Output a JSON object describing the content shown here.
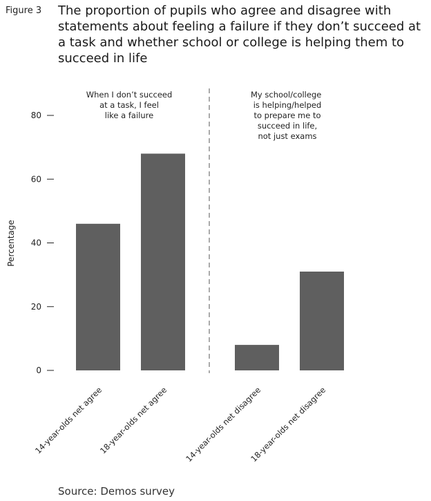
{
  "figure_label": "Figure 3",
  "title": "The proportion of pupils who agree and disagree with statements about feeling a failure if they don’t succeed at a task and whether school or college is helping them to succeed in life",
  "source": "Source: Demos survey",
  "colors": {
    "bar": "#5f5f5f",
    "axis": "#222222",
    "divider": "#555555"
  },
  "chart_data": {
    "type": "bar",
    "ylabel": "Percentage",
    "xlabel": "",
    "ylim": [
      0,
      80
    ],
    "yticks": [
      0,
      20,
      40,
      60,
      80
    ],
    "grid": false,
    "categories": [
      "14-year-olds net agree",
      "18-year-olds net agree",
      "14-year-olds net disagree",
      "18-year-olds net disagree"
    ],
    "values": [
      46,
      68,
      8,
      31
    ],
    "panels": [
      {
        "label_lines": [
          "When I don’t succeed",
          "at a task, I feel",
          "like a failure"
        ],
        "categories": [
          0,
          1
        ]
      },
      {
        "label_lines": [
          "My school/college \u0001",
          "is helping/helped",
          "to prepare me to",
          "succeed in life,",
          "not just exams"
        ],
        "categories": [
          2,
          3
        ]
      }
    ]
  }
}
